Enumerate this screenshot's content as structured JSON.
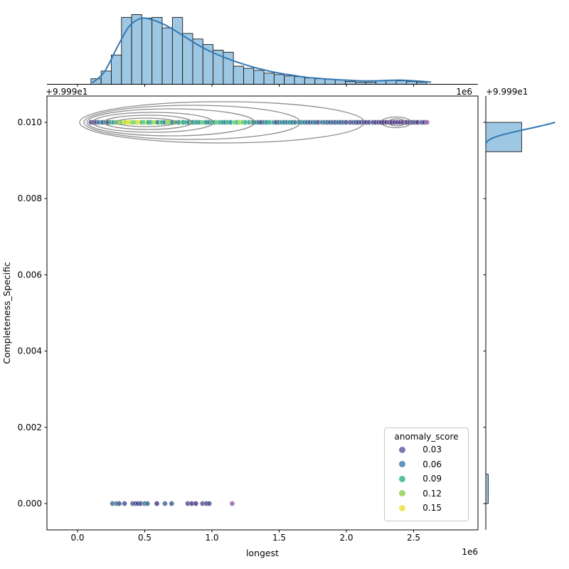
{
  "figure": {
    "background": "#ffffff"
  },
  "chart_data": [
    {
      "id": "joint-scatter",
      "type": "scatter",
      "xlabel": "longest",
      "ylabel": "Completeness_Specific",
      "x_offset_text": "1e6",
      "y_offset_text": "+9.999e1",
      "x_unit_multiplier": 1000000,
      "xlim": [
        -0.2275,
        2.979
      ],
      "ylim": [
        -0.00069,
        0.01069
      ],
      "xticks": [
        0.0,
        0.5,
        1.0,
        1.5,
        2.0,
        2.5
      ],
      "xtick_labels": [
        "0.0",
        "0.5",
        "1.0",
        "1.5",
        "2.0",
        "2.5"
      ],
      "yticks": [
        0.0,
        0.002,
        0.004,
        0.006,
        0.008,
        0.01
      ],
      "ytick_labels": [
        "0.000",
        "0.002",
        "0.004",
        "0.006",
        "0.008",
        "0.010"
      ],
      "grid": false,
      "point_alpha": 0.8,
      "palette": [
        "#46327e",
        "#3f4f8c",
        "#31688e",
        "#2a788e",
        "#21918c",
        "#2ab07f",
        "#5ec962",
        "#a5db36",
        "#e8e419",
        "#8e5fa8"
      ],
      "points_at_y0010": [
        [
          0.1,
          0
        ],
        [
          0.12,
          0
        ],
        [
          0.14,
          1
        ],
        [
          0.16,
          2
        ],
        [
          0.18,
          3
        ],
        [
          0.19,
          2
        ],
        [
          0.21,
          4
        ],
        [
          0.23,
          0
        ],
        [
          0.25,
          5
        ],
        [
          0.27,
          4
        ],
        [
          0.29,
          6
        ],
        [
          0.31,
          7
        ],
        [
          0.33,
          6
        ],
        [
          0.35,
          8
        ],
        [
          0.36,
          7
        ],
        [
          0.38,
          8
        ],
        [
          0.4,
          7
        ],
        [
          0.42,
          6
        ],
        [
          0.44,
          7
        ],
        [
          0.46,
          8
        ],
        [
          0.48,
          5
        ],
        [
          0.5,
          6
        ],
        [
          0.52,
          7
        ],
        [
          0.53,
          4
        ],
        [
          0.55,
          5
        ],
        [
          0.57,
          7
        ],
        [
          0.59,
          6
        ],
        [
          0.6,
          2
        ],
        [
          0.62,
          6
        ],
        [
          0.63,
          5
        ],
        [
          0.65,
          2
        ],
        [
          0.67,
          6
        ],
        [
          0.68,
          7
        ],
        [
          0.7,
          5
        ],
        [
          0.71,
          3
        ],
        [
          0.73,
          6
        ],
        [
          0.75,
          0
        ],
        [
          0.76,
          5
        ],
        [
          0.78,
          6
        ],
        [
          0.79,
          4
        ],
        [
          0.81,
          5
        ],
        [
          0.83,
          2
        ],
        [
          0.85,
          6
        ],
        [
          0.86,
          4
        ],
        [
          0.88,
          3
        ],
        [
          0.89,
          5
        ],
        [
          0.91,
          4
        ],
        [
          0.93,
          6
        ],
        [
          0.95,
          5
        ],
        [
          0.96,
          4
        ],
        [
          0.98,
          3
        ],
        [
          1.0,
          5
        ],
        [
          1.02,
          4
        ],
        [
          1.04,
          6
        ],
        [
          1.06,
          5
        ],
        [
          1.08,
          4
        ],
        [
          1.1,
          3
        ],
        [
          1.12,
          5
        ],
        [
          1.14,
          4
        ],
        [
          1.17,
          6
        ],
        [
          1.19,
          5
        ],
        [
          1.21,
          7
        ],
        [
          1.23,
          6
        ],
        [
          1.25,
          5
        ],
        [
          1.28,
          4
        ],
        [
          1.3,
          6
        ],
        [
          1.31,
          3
        ],
        [
          1.33,
          4
        ],
        [
          1.35,
          2
        ],
        [
          1.37,
          0
        ],
        [
          1.39,
          4
        ],
        [
          1.41,
          3
        ],
        [
          1.43,
          5
        ],
        [
          1.46,
          4
        ],
        [
          1.48,
          0
        ],
        [
          1.5,
          3
        ],
        [
          1.52,
          4
        ],
        [
          1.54,
          2
        ],
        [
          1.56,
          3
        ],
        [
          1.58,
          4
        ],
        [
          1.6,
          2
        ],
        [
          1.62,
          3
        ],
        [
          1.65,
          2
        ],
        [
          1.67,
          4
        ],
        [
          1.69,
          3
        ],
        [
          1.71,
          2
        ],
        [
          1.73,
          1
        ],
        [
          1.75,
          3
        ],
        [
          1.77,
          2
        ],
        [
          1.79,
          1
        ],
        [
          1.82,
          2
        ],
        [
          1.84,
          3
        ],
        [
          1.86,
          2
        ],
        [
          1.88,
          1
        ],
        [
          1.9,
          2
        ],
        [
          1.92,
          1
        ],
        [
          1.94,
          2
        ],
        [
          1.96,
          1
        ],
        [
          1.98,
          2
        ],
        [
          2.0,
          1
        ],
        [
          2.03,
          0
        ],
        [
          2.05,
          2
        ],
        [
          2.07,
          1
        ],
        [
          2.09,
          0
        ],
        [
          2.11,
          1
        ],
        [
          2.13,
          1
        ],
        [
          2.15,
          0
        ],
        [
          2.17,
          1
        ],
        [
          2.2,
          0
        ],
        [
          2.22,
          0
        ],
        [
          2.24,
          1
        ],
        [
          2.26,
          0
        ],
        [
          2.28,
          0
        ],
        [
          2.3,
          0
        ],
        [
          2.32,
          0
        ],
        [
          2.34,
          0
        ],
        [
          2.36,
          0
        ],
        [
          2.38,
          0
        ],
        [
          2.4,
          0
        ],
        [
          2.42,
          0
        ],
        [
          2.44,
          0
        ],
        [
          2.45,
          0
        ],
        [
          2.47,
          1
        ],
        [
          2.49,
          0
        ],
        [
          2.51,
          1
        ],
        [
          2.53,
          0
        ],
        [
          2.56,
          1
        ],
        [
          2.58,
          0
        ],
        [
          2.6,
          9
        ]
      ],
      "points_at_y0000": [
        [
          0.26,
          2
        ],
        [
          0.29,
          2
        ],
        [
          0.31,
          1
        ],
        [
          0.35,
          1
        ],
        [
          0.41,
          1
        ],
        [
          0.43,
          1
        ],
        [
          0.45,
          0
        ],
        [
          0.47,
          1
        ],
        [
          0.5,
          2
        ],
        [
          0.52,
          2
        ],
        [
          0.59,
          0
        ],
        [
          0.65,
          2
        ],
        [
          0.7,
          1
        ],
        [
          0.82,
          1
        ],
        [
          0.85,
          0
        ],
        [
          0.88,
          0
        ],
        [
          0.93,
          1
        ],
        [
          0.96,
          0
        ],
        [
          0.98,
          1
        ],
        [
          1.15,
          9
        ]
      ],
      "contour_color": "#7f7f7f",
      "contour_ellipses": [
        [
          0.508,
          0.01,
          0.222,
          0.000112
        ],
        [
          0.524,
          0.01,
          0.328,
          0.000187
        ],
        [
          0.561,
          0.01,
          0.45,
          0.000261
        ],
        [
          0.693,
          0.01,
          0.624,
          0.000354
        ],
        [
          0.852,
          0.01,
          0.804,
          0.000448
        ],
        [
          1.074,
          0.01,
          1.058,
          0.000541
        ],
        [
          2.37,
          0.01,
          0.111,
          0.00014
        ],
        [
          2.376,
          0.01,
          0.064,
          9.3e-05
        ]
      ],
      "legend": {
        "title": "anomaly_score",
        "position": "lower-right",
        "entries": [
          {
            "label": "0.03",
            "color": "#7b79b6"
          },
          {
            "label": "0.06",
            "color": "#5f94b8"
          },
          {
            "label": "0.09",
            "color": "#57bfa2"
          },
          {
            "label": "0.12",
            "color": "#9fd96c"
          },
          {
            "label": "0.15",
            "color": "#eee45f"
          }
        ]
      }
    },
    {
      "id": "top-marginal-histogram",
      "type": "bar",
      "orientation": "vertical",
      "x_offset_text": "1e6",
      "bar_color": "#9ec7e3",
      "bar_edge_color": "#1a1a1a",
      "kde_color": "#3279b5",
      "bin_start": 0.1,
      "bin_width": 0.0757,
      "heights_rel": [
        0.08,
        0.19,
        0.42,
        0.96,
        1.0,
        0.95,
        0.96,
        0.81,
        0.96,
        0.73,
        0.65,
        0.57,
        0.49,
        0.46,
        0.26,
        0.23,
        0.2,
        0.16,
        0.14,
        0.12,
        0.11,
        0.09,
        0.08,
        0.07,
        0.06,
        0.04,
        0.03,
        0.03,
        0.05,
        0.06,
        0.05,
        0.04,
        0.03
      ],
      "kde_points": [
        [
          0.11,
          0.02
        ],
        [
          0.2,
          0.18
        ],
        [
          0.3,
          0.55
        ],
        [
          0.38,
          0.82
        ],
        [
          0.45,
          0.93
        ],
        [
          0.5,
          0.95
        ],
        [
          0.55,
          0.93
        ],
        [
          0.62,
          0.88
        ],
        [
          0.7,
          0.8
        ],
        [
          0.8,
          0.68
        ],
        [
          0.9,
          0.56
        ],
        [
          1.0,
          0.46
        ],
        [
          1.1,
          0.38
        ],
        [
          1.2,
          0.31
        ],
        [
          1.3,
          0.25
        ],
        [
          1.4,
          0.2
        ],
        [
          1.5,
          0.16
        ],
        [
          1.6,
          0.13
        ],
        [
          1.7,
          0.1
        ],
        [
          1.8,
          0.085
        ],
        [
          1.9,
          0.07
        ],
        [
          2.0,
          0.06
        ],
        [
          2.1,
          0.05
        ],
        [
          2.2,
          0.05
        ],
        [
          2.3,
          0.055
        ],
        [
          2.4,
          0.06
        ],
        [
          2.5,
          0.05
        ],
        [
          2.58,
          0.04
        ],
        [
          2.63,
          0.03
        ]
      ]
    },
    {
      "id": "right-marginal-histogram",
      "type": "bar",
      "orientation": "horizontal",
      "y_offset_text": "+9.999e1",
      "bar_color": "#9ec7e3",
      "bar_edge_color": "#1a1a1a",
      "kde_color": "#3279b5",
      "bars": [
        {
          "y0": 0.00923,
          "y1": 0.01,
          "length_rel": 0.45
        },
        {
          "y0": 0.0,
          "y1": 0.00077,
          "length_rel": 0.03
        }
      ],
      "kde_points": [
        [
          0.00945,
          0.0
        ],
        [
          0.00952,
          0.03
        ],
        [
          0.0096,
          0.1
        ],
        [
          0.00968,
          0.22
        ],
        [
          0.00976,
          0.38
        ],
        [
          0.00984,
          0.55
        ],
        [
          0.0099,
          0.68
        ],
        [
          0.00996,
          0.8
        ],
        [
          0.01,
          0.87
        ]
      ]
    }
  ]
}
